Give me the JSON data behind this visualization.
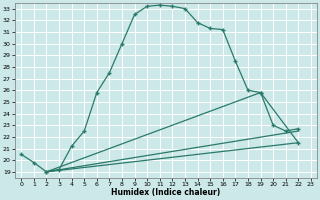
{
  "bg_color": "#cce8e8",
  "grid_color": "#ffffff",
  "line_color": "#2a7a6a",
  "xlabel": "Humidex (Indice chaleur)",
  "xlim": [
    -0.5,
    23.5
  ],
  "ylim": [
    18.5,
    33.5
  ],
  "xticks": [
    0,
    1,
    2,
    3,
    4,
    5,
    6,
    7,
    8,
    9,
    10,
    11,
    12,
    13,
    14,
    15,
    16,
    17,
    18,
    19,
    20,
    21,
    22,
    23
  ],
  "yticks": [
    19,
    20,
    21,
    22,
    23,
    24,
    25,
    26,
    27,
    28,
    29,
    30,
    31,
    32,
    33
  ],
  "main_x": [
    0,
    1,
    2,
    3,
    4,
    5,
    6,
    7,
    8,
    9,
    10,
    11,
    12,
    13,
    14,
    15,
    16,
    17,
    18,
    19,
    20,
    21,
    22
  ],
  "main_y": [
    20.5,
    19.8,
    19.0,
    19.2,
    21.2,
    22.5,
    25.8,
    27.5,
    30.0,
    32.5,
    33.2,
    33.3,
    33.2,
    33.0,
    31.8,
    31.3,
    31.2,
    28.5,
    26.0,
    25.8,
    23.0,
    22.5,
    22.7
  ],
  "line2_x": [
    2,
    19,
    22
  ],
  "line2_y": [
    19.0,
    25.8,
    21.5
  ],
  "line3_x": [
    2,
    22
  ],
  "line3_y": [
    19.0,
    22.5
  ],
  "line4_x": [
    2,
    22
  ],
  "line4_y": [
    19.0,
    21.5
  ]
}
